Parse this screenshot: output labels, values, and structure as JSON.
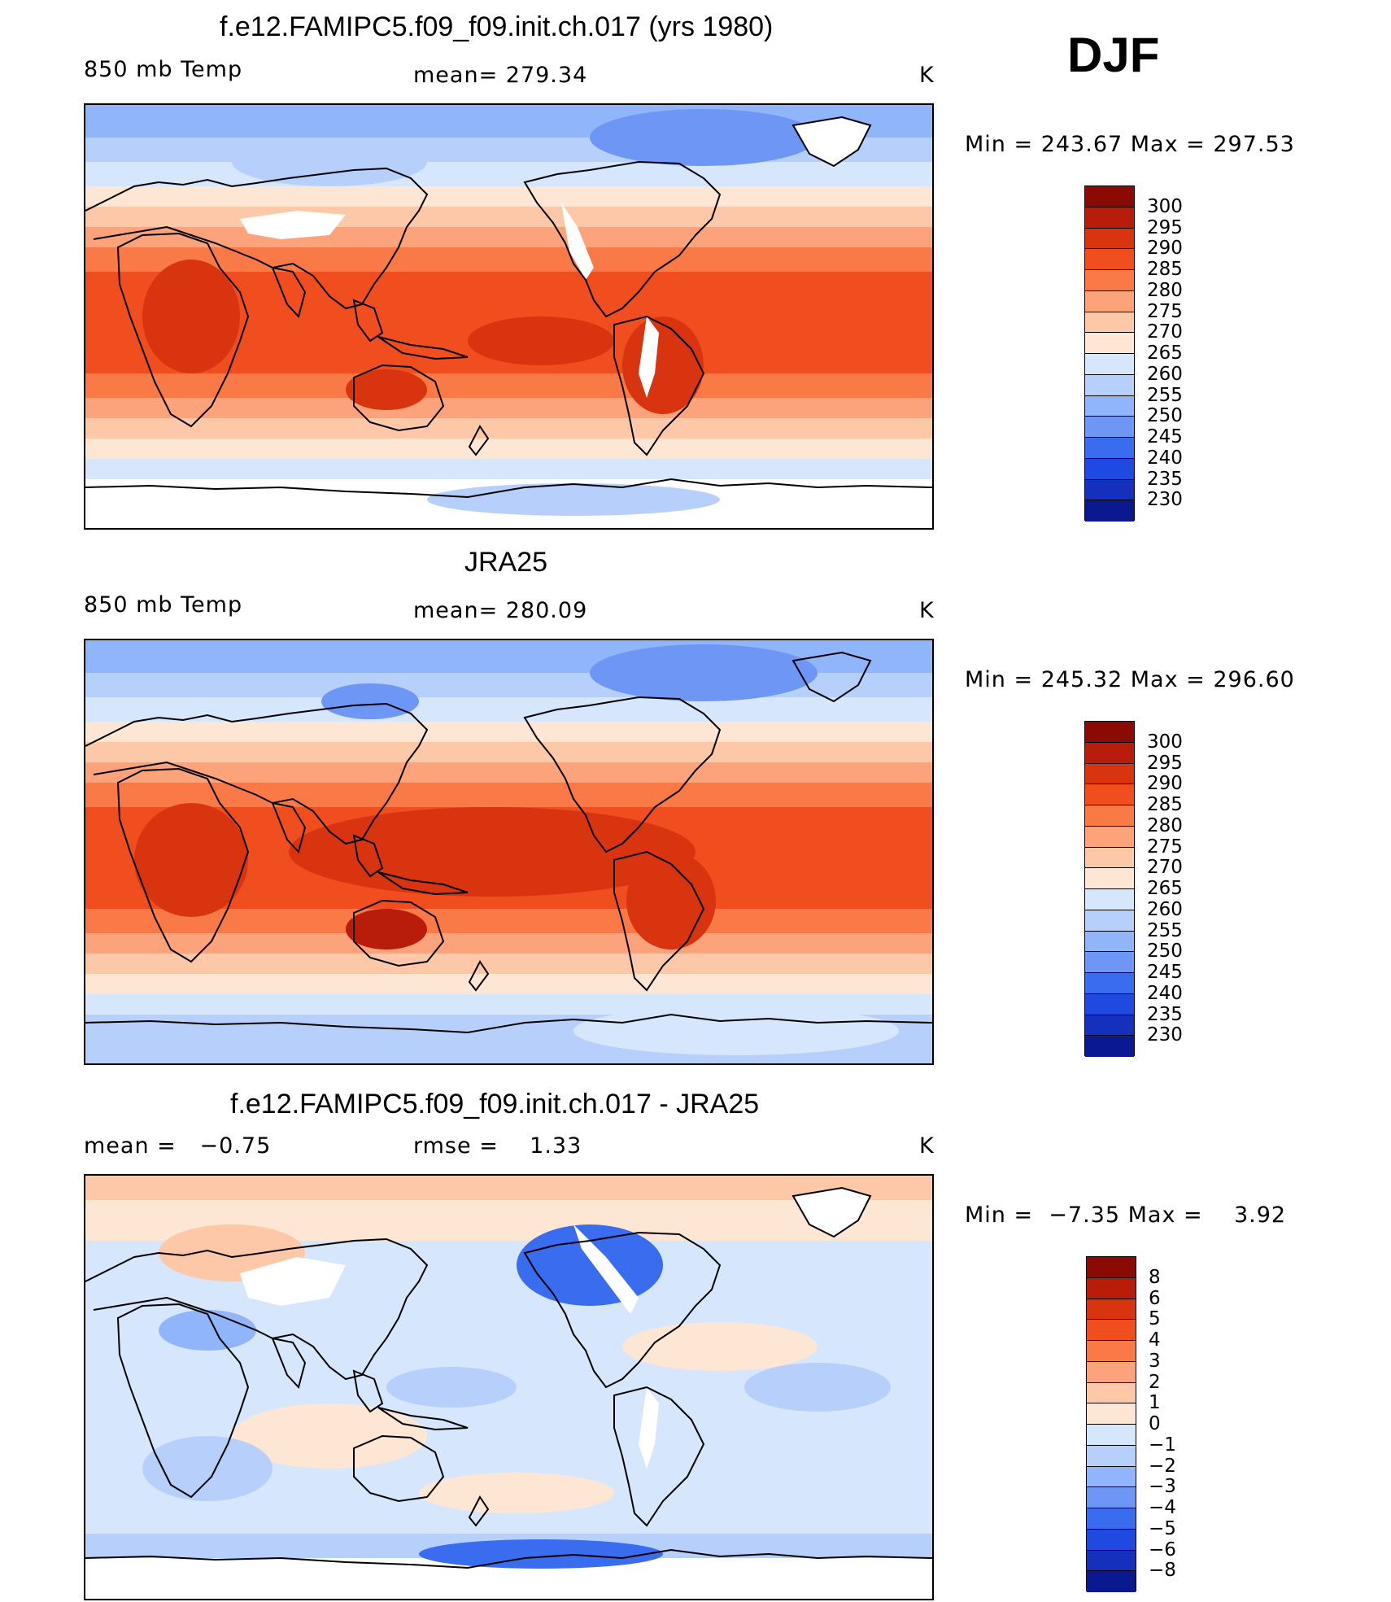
{
  "season": "DJF",
  "panels": [
    {
      "id": "model",
      "title": "f.e12.FAMIPC5.f09_f09.init.ch.017 (yrs 1980)",
      "left_label": "850 mb Temp",
      "center_label": "mean= 279.34",
      "units": "K",
      "minmax": "Min = 243.67 Max = 297.53",
      "colorbar": {
        "labels": [
          "300",
          "295",
          "290",
          "285",
          "280",
          "275",
          "270",
          "265",
          "260",
          "255",
          "250",
          "245",
          "240",
          "235",
          "230"
        ],
        "colors": [
          "#8c0a04",
          "#b81d0c",
          "#d8340f",
          "#f04e1e",
          "#fa7a47",
          "#fca37c",
          "#fdc8a8",
          "#fde6d4",
          "#d6e6fc",
          "#b6d0fb",
          "#90b5fa",
          "#6d96f5",
          "#3a6cf0",
          "#1f49e0",
          "#1430bd",
          "#0a1990"
        ]
      }
    },
    {
      "id": "obs",
      "title": "JRA25",
      "left_label": "850 mb Temp",
      "center_label": "mean= 280.09",
      "units": "K",
      "minmax": "Min = 245.32 Max = 296.60",
      "colorbar": {
        "labels": [
          "300",
          "295",
          "290",
          "285",
          "280",
          "275",
          "270",
          "265",
          "260",
          "255",
          "250",
          "245",
          "240",
          "235",
          "230"
        ],
        "colors": [
          "#8c0a04",
          "#b81d0c",
          "#d8340f",
          "#f04e1e",
          "#fa7a47",
          "#fca37c",
          "#fdc8a8",
          "#fde6d4",
          "#d6e6fc",
          "#b6d0fb",
          "#90b5fa",
          "#6d96f5",
          "#3a6cf0",
          "#1f49e0",
          "#1430bd",
          "#0a1990"
        ]
      }
    },
    {
      "id": "diff",
      "title": "f.e12.FAMIPC5.f09_f09.init.ch.017 - JRA25",
      "left_label": "mean =   −0.75",
      "center_label": "rmse =    1.33",
      "units": "K",
      "minmax": "Min =  −7.35 Max =    3.92",
      "colorbar": {
        "labels": [
          "8",
          "6",
          "5",
          "4",
          "3",
          "2",
          "1",
          "0",
          "−1",
          "−2",
          "−3",
          "−4",
          "−5",
          "−6",
          "−8"
        ],
        "colors": [
          "#8c0a04",
          "#b81d0c",
          "#d8340f",
          "#f04e1e",
          "#fa7a47",
          "#fca37c",
          "#fdc8a8",
          "#fde6d4",
          "#d6e6fc",
          "#b6d0fb",
          "#90b5fa",
          "#6d96f5",
          "#3a6cf0",
          "#1f49e0",
          "#1430bd",
          "#0a1990"
        ]
      }
    }
  ]
}
